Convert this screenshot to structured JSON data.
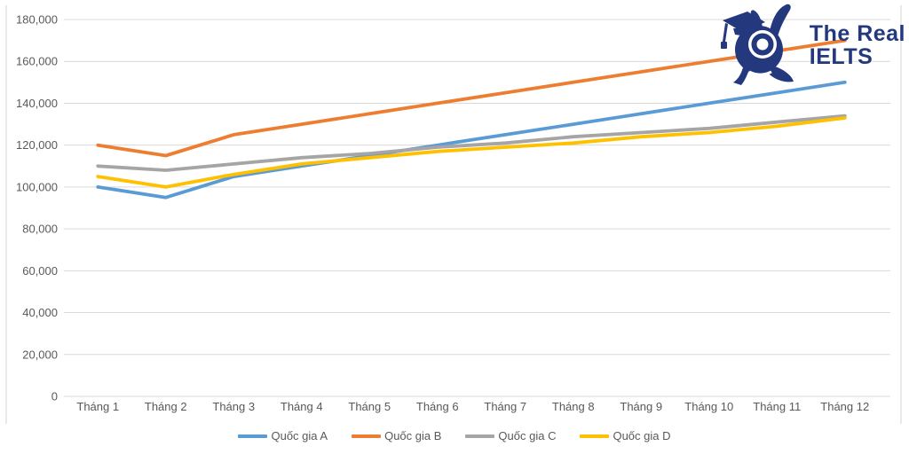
{
  "brand": {
    "line1": "The Real",
    "line2": "IELTS",
    "color": "#24387E"
  },
  "colors": {
    "gridline": "#d9d9d9",
    "axis_text": "#595959",
    "background": "#ffffff"
  },
  "chart_data": {
    "type": "line",
    "title": "",
    "xlabel": "",
    "ylabel": "",
    "grid": true,
    "legend_position": "bottom",
    "y_axis": {
      "min": 0,
      "max": 180000,
      "step": 20000,
      "tick_labels": [
        "0",
        "20,000",
        "40,000",
        "60,000",
        "80,000",
        "100,000",
        "120,000",
        "140,000",
        "160,000",
        "180,000"
      ]
    },
    "categories": [
      "Tháng 1",
      "Tháng 2",
      "Tháng 3",
      "Tháng 4",
      "Tháng 5",
      "Tháng 6",
      "Tháng 7",
      "Tháng 8",
      "Tháng 9",
      "Tháng 10",
      "Tháng 11",
      "Tháng 12"
    ],
    "series": [
      {
        "name": "Quốc gia A",
        "color": "#5B9BD5",
        "values": [
          100000,
          95000,
          105000,
          110000,
          115000,
          120000,
          125000,
          130000,
          135000,
          140000,
          145000,
          150000
        ]
      },
      {
        "name": "Quốc gia B",
        "color": "#ED7D31",
        "values": [
          120000,
          115000,
          125000,
          130000,
          135000,
          140000,
          145000,
          150000,
          155000,
          160000,
          165000,
          170000
        ]
      },
      {
        "name": "Quốc gia C",
        "color": "#A5A5A5",
        "values": [
          110000,
          108000,
          111000,
          114000,
          116000,
          119000,
          121000,
          124000,
          126000,
          128000,
          131000,
          134000
        ]
      },
      {
        "name": "Quốc gia D",
        "color": "#FFC000",
        "values": [
          105000,
          100000,
          106000,
          111000,
          114000,
          117000,
          119000,
          121000,
          124000,
          126000,
          129000,
          133000
        ]
      }
    ]
  }
}
